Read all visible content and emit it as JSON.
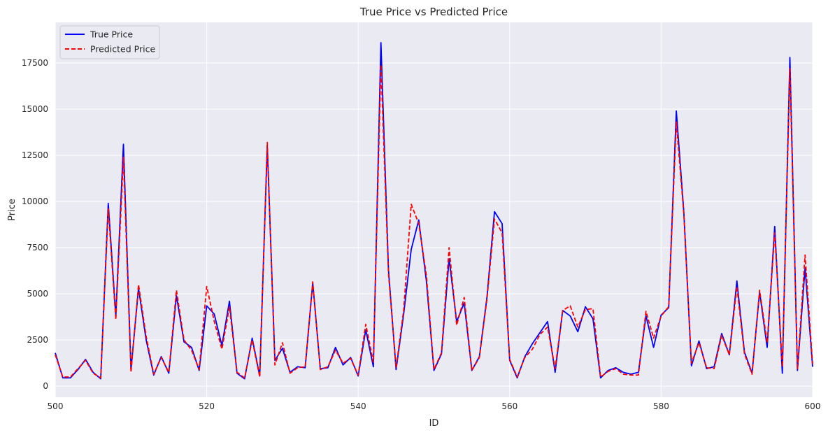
{
  "chart_data": {
    "type": "line",
    "title": "True Price vs Predicted Price",
    "xlabel": "ID",
    "ylabel": "Price",
    "xlim": [
      500,
      600
    ],
    "ylim": [
      -600,
      19700
    ],
    "xticks": [
      500,
      520,
      540,
      560,
      580,
      600
    ],
    "yticks": [
      0,
      2500,
      5000,
      7500,
      10000,
      12500,
      15000,
      17500
    ],
    "grid": true,
    "legend_position": "top-left",
    "x": [
      500,
      501,
      502,
      503,
      504,
      505,
      506,
      507,
      508,
      509,
      510,
      511,
      512,
      513,
      514,
      515,
      516,
      517,
      518,
      519,
      520,
      521,
      522,
      523,
      524,
      525,
      526,
      527,
      528,
      529,
      530,
      531,
      532,
      533,
      534,
      535,
      536,
      537,
      538,
      539,
      540,
      541,
      542,
      543,
      544,
      545,
      546,
      547,
      548,
      549,
      550,
      551,
      552,
      553,
      554,
      555,
      556,
      557,
      558,
      559,
      560,
      561,
      562,
      563,
      564,
      565,
      566,
      567,
      568,
      569,
      570,
      571,
      572,
      573,
      574,
      575,
      576,
      577,
      578,
      579,
      580,
      581,
      582,
      583,
      584,
      585,
      586,
      587,
      588,
      589,
      590,
      591,
      592,
      593,
      594,
      595,
      596,
      597,
      598,
      599,
      600
    ],
    "series": [
      {
        "name": "True Price",
        "color": "#0000ff",
        "style": "solid",
        "values": [
          1800,
          450,
          450,
          900,
          1450,
          750,
          400,
          9900,
          3800,
          13100,
          900,
          5300,
          2500,
          600,
          1600,
          700,
          4900,
          2400,
          2100,
          850,
          4350,
          3900,
          2200,
          4600,
          700,
          400,
          2600,
          550,
          13000,
          1400,
          2050,
          750,
          1050,
          1000,
          5600,
          950,
          1000,
          2100,
          1150,
          1550,
          550,
          3050,
          1050,
          18600,
          6300,
          900,
          3900,
          7400,
          9000,
          5700,
          850,
          1750,
          6900,
          3500,
          4500,
          850,
          1600,
          4800,
          9450,
          8800,
          1400,
          450,
          1600,
          2300,
          2900,
          3500,
          750,
          4100,
          3800,
          2950,
          4300,
          3650,
          450,
          850,
          1000,
          750,
          650,
          750,
          3800,
          2100,
          3850,
          4250,
          14900,
          9400,
          1100,
          2450,
          950,
          1050,
          2850,
          1700,
          5700,
          1850,
          700,
          5100,
          2100,
          8650,
          700,
          17800,
          850,
          6400,
          1050
        ]
      },
      {
        "name": "Predicted Price",
        "color": "#ff0000",
        "style": "dashed",
        "values": [
          1700,
          500,
          500,
          950,
          1400,
          700,
          450,
          9600,
          3600,
          12400,
          750,
          5500,
          2700,
          650,
          1550,
          750,
          5200,
          2500,
          1950,
          900,
          5400,
          3500,
          2000,
          4300,
          750,
          450,
          2500,
          500,
          13200,
          1150,
          2350,
          700,
          1000,
          1050,
          5650,
          900,
          1050,
          1950,
          1250,
          1500,
          600,
          3350,
          1300,
          17400,
          6100,
          1000,
          4100,
          9850,
          8800,
          6000,
          900,
          1800,
          7500,
          3300,
          4800,
          850,
          1550,
          4700,
          9050,
          8300,
          1450,
          500,
          1550,
          2000,
          2800,
          3200,
          950,
          4100,
          4350,
          3200,
          4150,
          4200,
          500,
          800,
          950,
          650,
          600,
          600,
          4050,
          2600,
          3800,
          4300,
          14300,
          9300,
          1250,
          2350,
          1000,
          950,
          2750,
          1700,
          5400,
          1750,
          650,
          5200,
          2350,
          8300,
          1050,
          17200,
          900,
          7100,
          1200
        ]
      }
    ]
  }
}
